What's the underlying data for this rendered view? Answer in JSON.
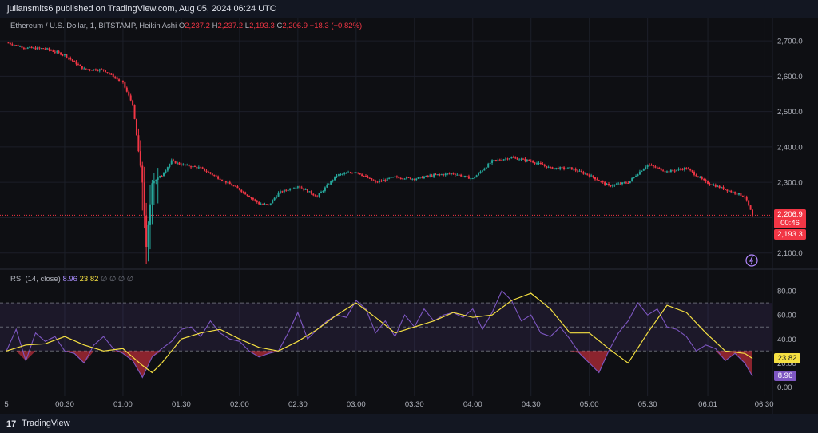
{
  "header": {
    "published": "juliansmits6 published on TradingView.com, Aug 05, 2024 06:24 UTC"
  },
  "legend": {
    "symbol": "Ethereum / U.S. Dollar, 1, BITSTAMP, Heikin Ashi",
    "o_key": "O",
    "o": "2,237.2",
    "h_key": "H",
    "h": "2,237.2",
    "l_key": "L",
    "l": "2,193.3",
    "c_key": "C",
    "c": "2,206.9",
    "change": "−18.3 (−0.82%)"
  },
  "rsi_legend": {
    "label": "RSI (14, close)",
    "rsi": "8.96",
    "ma": "23.82",
    "extras": "∅ ∅ ∅ ∅"
  },
  "price_tags": {
    "current": "2,206.9",
    "countdown": "00:46",
    "low": "2,193.3"
  },
  "rsi_tags": {
    "ma": "23.82",
    "rsi": "8.96"
  },
  "footer": {
    "brand": "TradingView",
    "logo": "17"
  },
  "colors": {
    "up": "#26a69a",
    "down": "#f23645",
    "rsi_line": "#7e57c2",
    "rsi_ma": "#f5e042",
    "bg": "#0e0f13"
  },
  "chart_data": [
    {
      "type": "candlestick",
      "style": "Heikin Ashi",
      "price_axis": {
        "ticks": [
          "2,700.0",
          "2,600.0",
          "2,500.0",
          "2,400.0",
          "2,300.0",
          "2,200.0",
          "2,100.0"
        ],
        "ylim": [
          2070,
          2725
        ]
      },
      "time_axis": {
        "ticks": [
          "00:30",
          "01:00",
          "01:30",
          "02:00",
          "02:30",
          "03:00",
          "03:30",
          "04:00",
          "04:30",
          "05:00",
          "05:30",
          "06:01",
          "06:30"
        ],
        "first_visible": "5"
      },
      "price_path": {
        "times": [
          "00:00",
          "00:10",
          "00:20",
          "00:30",
          "00:40",
          "00:50",
          "01:00",
          "01:05",
          "01:10",
          "01:12",
          "01:15",
          "01:20",
          "01:25",
          "01:30",
          "01:40",
          "01:50",
          "02:00",
          "02:10",
          "02:15",
          "02:20",
          "02:30",
          "02:40",
          "02:50",
          "03:00",
          "03:10",
          "03:20",
          "03:30",
          "03:40",
          "03:50",
          "04:00",
          "04:10",
          "04:20",
          "04:30",
          "04:40",
          "04:50",
          "05:00",
          "05:10",
          "05:20",
          "05:30",
          "05:40",
          "05:50",
          "06:00",
          "06:10",
          "06:20",
          "06:24"
        ],
        "values": [
          2695,
          2680,
          2678,
          2660,
          2620,
          2618,
          2580,
          2520,
          2300,
          2115,
          2300,
          2320,
          2360,
          2350,
          2340,
          2310,
          2280,
          2240,
          2235,
          2270,
          2290,
          2260,
          2320,
          2330,
          2300,
          2315,
          2310,
          2320,
          2325,
          2310,
          2360,
          2370,
          2360,
          2340,
          2340,
          2320,
          2290,
          2300,
          2350,
          2330,
          2340,
          2300,
          2280,
          2260,
          2206.9
        ]
      },
      "current_price": 2206.9
    },
    {
      "type": "line",
      "title": "RSI (14, close)",
      "rsi_axis": {
        "ticks": [
          "80.00",
          "60.00",
          "40.00",
          "20.00",
          "0.00"
        ],
        "ylim": [
          -5,
          88
        ],
        "bands": [
          70,
          50,
          30
        ]
      },
      "series": [
        {
          "name": "RSI",
          "x": [
            "00:00",
            "00:05",
            "00:10",
            "00:15",
            "00:20",
            "00:25",
            "00:30",
            "00:35",
            "00:40",
            "00:45",
            "00:50",
            "00:55",
            "01:00",
            "01:05",
            "01:10",
            "01:15",
            "01:20",
            "01:25",
            "01:30",
            "01:35",
            "01:40",
            "01:45",
            "01:50",
            "01:55",
            "02:00",
            "02:05",
            "02:10",
            "02:15",
            "02:20",
            "02:25",
            "02:30",
            "02:35",
            "02:40",
            "02:45",
            "02:50",
            "02:55",
            "03:00",
            "03:05",
            "03:10",
            "03:15",
            "03:20",
            "03:25",
            "03:30",
            "03:35",
            "03:40",
            "03:45",
            "03:50",
            "03:55",
            "04:00",
            "04:05",
            "04:10",
            "04:15",
            "04:20",
            "04:25",
            "04:30",
            "04:35",
            "04:40",
            "04:45",
            "04:50",
            "04:55",
            "05:00",
            "05:05",
            "05:10",
            "05:15",
            "05:20",
            "05:25",
            "05:30",
            "05:35",
            "05:40",
            "05:45",
            "05:50",
            "05:55",
            "06:00",
            "06:05",
            "06:10",
            "06:15",
            "06:20",
            "06:24"
          ],
          "values": [
            30,
            48,
            22,
            45,
            38,
            42,
            30,
            28,
            20,
            35,
            42,
            32,
            28,
            22,
            8,
            25,
            32,
            38,
            48,
            50,
            42,
            55,
            45,
            40,
            38,
            30,
            25,
            28,
            30,
            45,
            62,
            40,
            48,
            55,
            60,
            58,
            72,
            65,
            45,
            55,
            42,
            60,
            50,
            65,
            55,
            60,
            62,
            58,
            65,
            48,
            62,
            80,
            72,
            55,
            60,
            45,
            42,
            50,
            40,
            28,
            20,
            12,
            30,
            45,
            55,
            70,
            60,
            65,
            50,
            48,
            42,
            30,
            35,
            32,
            22,
            28,
            20,
            8.96
          ]
        },
        {
          "name": "MA",
          "x": [
            "00:00",
            "00:10",
            "00:20",
            "00:30",
            "00:40",
            "00:50",
            "01:00",
            "01:10",
            "01:15",
            "01:20",
            "01:30",
            "01:40",
            "01:50",
            "02:00",
            "02:10",
            "02:20",
            "02:30",
            "02:40",
            "02:50",
            "03:00",
            "03:10",
            "03:20",
            "03:30",
            "03:40",
            "03:50",
            "04:00",
            "04:10",
            "04:20",
            "04:30",
            "04:40",
            "04:50",
            "05:00",
            "05:10",
            "05:20",
            "05:30",
            "05:40",
            "05:50",
            "06:00",
            "06:10",
            "06:20",
            "06:24"
          ],
          "values": [
            30,
            35,
            36,
            42,
            35,
            30,
            32,
            18,
            12,
            20,
            40,
            45,
            48,
            40,
            33,
            30,
            38,
            48,
            60,
            70,
            58,
            45,
            50,
            55,
            62,
            58,
            60,
            72,
            78,
            65,
            45,
            45,
            32,
            20,
            45,
            68,
            62,
            45,
            30,
            28,
            23.82
          ]
        }
      ]
    }
  ]
}
